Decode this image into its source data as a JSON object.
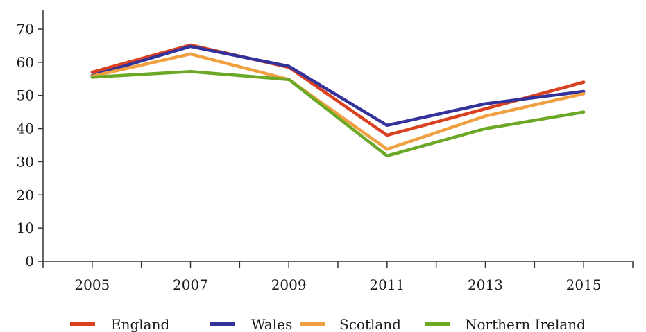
{
  "chart_data": {
    "type": "line",
    "x": [
      2005,
      2007,
      2009,
      2011,
      2013,
      2015
    ],
    "x_tick_labels": [
      "2005",
      "2007",
      "2009",
      "2011",
      "2013",
      "2015"
    ],
    "y_tick_labels": [
      "0",
      "10",
      "20",
      "30",
      "40",
      "50",
      "60",
      "70"
    ],
    "ylim": [
      0,
      70
    ],
    "xlim": [
      2004,
      2016
    ],
    "grid": false,
    "legend_position": "bottom",
    "series": [
      {
        "name": "England",
        "color": "#d9401f",
        "values": [
          57,
          65.2,
          58.5,
          38,
          46,
          54
        ]
      },
      {
        "name": "Wales",
        "color": "#33329a",
        "values": [
          56,
          64.8,
          58.8,
          41,
          47.5,
          51.2
        ]
      },
      {
        "name": "Scotland",
        "color": "#f0a040",
        "values": [
          55.8,
          62.5,
          54.8,
          33.8,
          43.8,
          50.5
        ]
      },
      {
        "name": "Northern Ireland",
        "color": "#6aa826",
        "values": [
          55.5,
          57.2,
          54.8,
          31.8,
          40,
          45
        ]
      }
    ]
  }
}
